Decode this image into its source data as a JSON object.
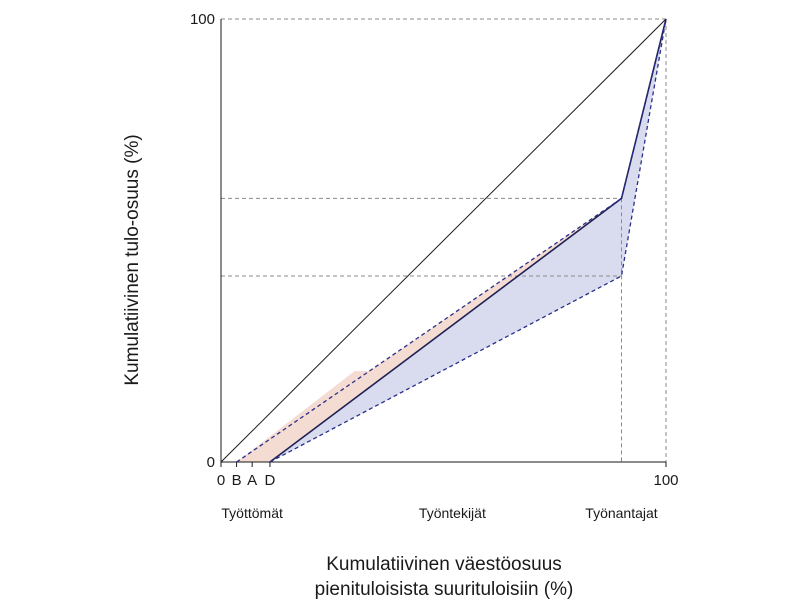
{
  "chart_data": {
    "type": "line",
    "title": "",
    "ylabel": "Kumulatiivinen tulo-osuus (%)",
    "xlabel_line1": "Kumulatiivinen väestöosuus",
    "xlabel_line2": "pienituloisista suurituloisiin (%)",
    "xlim": [
      0,
      100
    ],
    "ylim": [
      0,
      100
    ],
    "x_tick_labels": [
      "0",
      "B",
      "A",
      "D",
      "100"
    ],
    "x_tick_values": [
      0,
      3.5,
      7,
      11,
      100
    ],
    "y_tick_labels": [
      "0",
      "100"
    ],
    "y_tick_values": [
      0,
      100
    ],
    "group_labels": [
      "Työttömät",
      "Työntekijät",
      "Työnantajat"
    ],
    "group_positions": [
      7,
      52,
      90
    ],
    "equality_line": {
      "x": [
        0,
        100
      ],
      "y": [
        0,
        100
      ]
    },
    "series": [
      {
        "x": [
          11,
          90,
          100
        ],
        "y": [
          0,
          59.5,
          100
        ],
        "style": "solid",
        "color": "#1f2155"
      },
      {
        "x": [
          3.5,
          90,
          100
        ],
        "y": [
          0,
          59.5,
          100
        ],
        "style": "dashed",
        "color": "#2a2f8a"
      },
      {
        "x": [
          11,
          90,
          100
        ],
        "y": [
          0,
          42,
          100
        ],
        "style": "dashed",
        "color": "#2a2f8a"
      }
    ],
    "shaded_regions": [
      {
        "x": [
          11,
          90,
          100,
          90
        ],
        "y": [
          0,
          59.5,
          100,
          42
        ],
        "color": "#d9dcef"
      },
      {
        "x": [
          3.5,
          7,
          11,
          90
        ],
        "y": [
          0,
          0,
          0,
          59.5
        ],
        "color": "#f5dcd2"
      }
    ],
    "reference_lines": {
      "horizontal": [
        100,
        59.5,
        42
      ],
      "vertical": [
        90,
        100
      ]
    }
  }
}
